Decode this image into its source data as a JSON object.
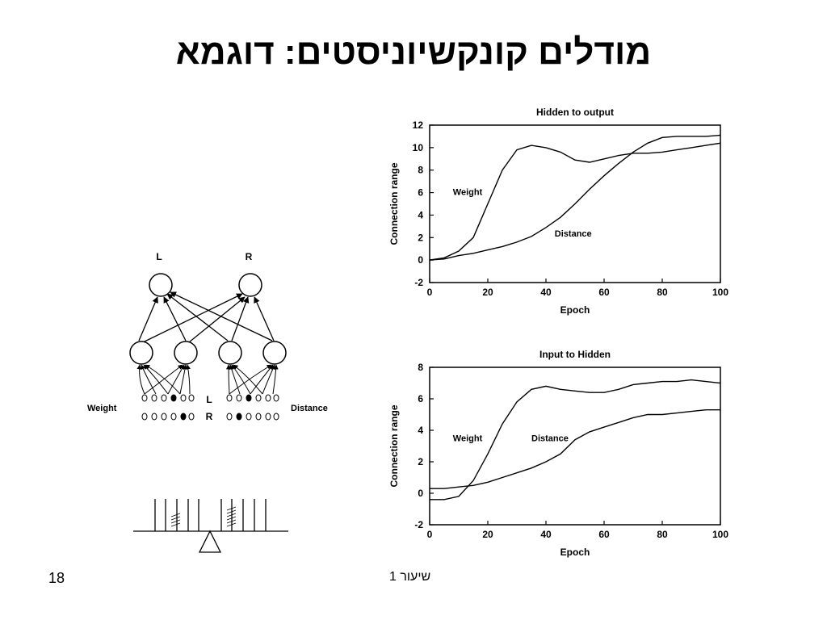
{
  "slide": {
    "title": "מודלים קונקשיוניסטים: דוגמא",
    "page_number": "18",
    "footer": "שיעור 1"
  },
  "network": {
    "output_labels": [
      "L",
      "R"
    ],
    "input_labels": {
      "left": "Weight",
      "right": "Distance"
    },
    "row_labels": [
      "L",
      "R"
    ]
  },
  "chart_data": [
    {
      "type": "line",
      "title": "Hidden to output",
      "xlabel": "Epoch",
      "ylabel": "Connection range",
      "xlim": [
        0,
        100
      ],
      "ylim": [
        -2,
        12
      ],
      "xticks": [
        0,
        20,
        40,
        60,
        80,
        100
      ],
      "yticks": [
        -2,
        0,
        2,
        4,
        6,
        8,
        10,
        12
      ],
      "series": [
        {
          "name": "Weight",
          "x": [
            0,
            5,
            10,
            15,
            20,
            25,
            30,
            35,
            40,
            45,
            50,
            55,
            60,
            65,
            70,
            75,
            80,
            85,
            90,
            95,
            100
          ],
          "values": [
            0,
            0.2,
            0.8,
            2.0,
            5.0,
            8.0,
            9.8,
            10.2,
            10.0,
            9.6,
            8.9,
            8.7,
            9.0,
            9.3,
            9.5,
            9.5,
            9.6,
            9.8,
            10.0,
            10.2,
            10.4
          ]
        },
        {
          "name": "Distance",
          "x": [
            0,
            5,
            10,
            15,
            20,
            25,
            30,
            35,
            40,
            45,
            50,
            55,
            60,
            65,
            70,
            75,
            80,
            85,
            90,
            95,
            100
          ],
          "values": [
            0,
            0.1,
            0.4,
            0.6,
            0.9,
            1.2,
            1.6,
            2.1,
            2.9,
            3.8,
            5.0,
            6.3,
            7.5,
            8.6,
            9.6,
            10.4,
            10.9,
            11.0,
            11.0,
            11.0,
            11.1
          ]
        }
      ]
    },
    {
      "type": "line",
      "title": "Input to Hidden",
      "xlabel": "Epoch",
      "ylabel": "Connection range",
      "xlim": [
        0,
        100
      ],
      "ylim": [
        -2,
        8
      ],
      "xticks": [
        0,
        20,
        40,
        60,
        80,
        100
      ],
      "yticks": [
        -2,
        0,
        2,
        4,
        6,
        8
      ],
      "series": [
        {
          "name": "Weight",
          "x": [
            0,
            5,
            10,
            15,
            20,
            25,
            30,
            35,
            40,
            45,
            50,
            55,
            60,
            65,
            70,
            75,
            80,
            85,
            90,
            95,
            100
          ],
          "values": [
            -0.4,
            -0.4,
            -0.2,
            0.8,
            2.5,
            4.4,
            5.8,
            6.6,
            6.8,
            6.6,
            6.5,
            6.4,
            6.4,
            6.6,
            6.9,
            7.0,
            7.1,
            7.1,
            7.2,
            7.1,
            7.0
          ]
        },
        {
          "name": "Distance",
          "x": [
            0,
            5,
            10,
            15,
            20,
            25,
            30,
            35,
            40,
            45,
            50,
            55,
            60,
            65,
            70,
            75,
            80,
            85,
            90,
            95,
            100
          ],
          "values": [
            0.3,
            0.3,
            0.4,
            0.5,
            0.7,
            1.0,
            1.3,
            1.6,
            2.0,
            2.5,
            3.4,
            3.9,
            4.2,
            4.5,
            4.8,
            5.0,
            5.0,
            5.1,
            5.2,
            5.3,
            5.3
          ]
        }
      ]
    }
  ]
}
